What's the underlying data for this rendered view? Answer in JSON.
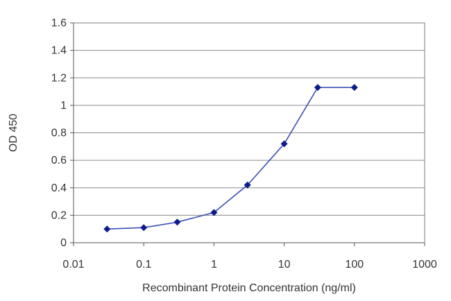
{
  "chart_data": {
    "type": "line",
    "title": "",
    "xlabel": "Recombinant Protein Concentration (ng/ml)",
    "ylabel": "OD 450",
    "xscale": "log",
    "xlim": [
      0.01,
      1000
    ],
    "ylim": [
      0,
      1.6
    ],
    "grid": {
      "y": true,
      "x": false
    },
    "legend": "none",
    "xticks": [
      {
        "value": 0.01,
        "label": "0.01"
      },
      {
        "value": 0.1,
        "label": "0.1"
      },
      {
        "value": 1,
        "label": "1"
      },
      {
        "value": 10,
        "label": "10"
      },
      {
        "value": 100,
        "label": "100"
      },
      {
        "value": 1000,
        "label": "1000"
      }
    ],
    "yticks": [
      {
        "value": 0,
        "label": "0"
      },
      {
        "value": 0.2,
        "label": "0.2"
      },
      {
        "value": 0.4,
        "label": "0.4"
      },
      {
        "value": 0.6,
        "label": "0.6"
      },
      {
        "value": 0.8,
        "label": "0.8"
      },
      {
        "value": 1.0,
        "label": "1"
      },
      {
        "value": 1.2,
        "label": "1.2"
      },
      {
        "value": 1.4,
        "label": "1.4"
      },
      {
        "value": 1.6,
        "label": "1.6"
      }
    ],
    "series": [
      {
        "color": "#3a4fb5",
        "marker_color": "#0d1b8c",
        "points": [
          {
            "x": 0.03,
            "y": 0.1
          },
          {
            "x": 0.1,
            "y": 0.11
          },
          {
            "x": 0.3,
            "y": 0.15
          },
          {
            "x": 1,
            "y": 0.22
          },
          {
            "x": 3,
            "y": 0.42
          },
          {
            "x": 10,
            "y": 0.72
          },
          {
            "x": 30,
            "y": 1.13
          },
          {
            "x": 100,
            "y": 1.13
          }
        ]
      }
    ]
  }
}
